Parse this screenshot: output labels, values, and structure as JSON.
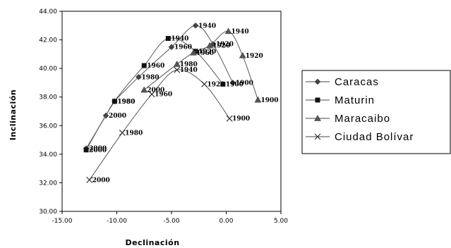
{
  "chart_data": {
    "type": "line",
    "title": "",
    "xlabel": "Declinación",
    "ylabel": "Inclinación",
    "xlim": [
      -15,
      5
    ],
    "ylim": [
      30,
      44
    ],
    "x_ticks": [
      -15,
      -10,
      -5,
      0,
      5
    ],
    "x_tick_labels": [
      "-15.00",
      "-10.00",
      "-5.00",
      "0.00",
      "5.00"
    ],
    "y_ticks": [
      30,
      32,
      34,
      36,
      38,
      40,
      42,
      44
    ],
    "y_tick_labels": [
      "30.00",
      "32.00",
      "34.00",
      "36.00",
      "38.00",
      "40.00",
      "42.00",
      "44.00"
    ],
    "grid": false,
    "legend": "right",
    "series": [
      {
        "name": "Caracas",
        "marker": "diamond",
        "points": [
          {
            "x": -12.8,
            "y": 34.4,
            "label": "2000"
          },
          {
            "x": -11.0,
            "y": 36.7,
            "label": "2000"
          },
          {
            "x": -10.2,
            "y": 37.7,
            "label": "1980"
          },
          {
            "x": -8.0,
            "y": 39.4,
            "label": "1980"
          },
          {
            "x": -5.0,
            "y": 41.5,
            "label": "1960"
          },
          {
            "x": -2.8,
            "y": 43.0,
            "label": "1940"
          },
          {
            "x": -1.2,
            "y": 41.7,
            "label": "1920"
          },
          {
            "x": 0.6,
            "y": 39.0,
            "label": "1900"
          }
        ]
      },
      {
        "name": "Maturin",
        "marker": "square",
        "points": [
          {
            "x": -12.8,
            "y": 34.3,
            "label": "2000"
          },
          {
            "x": -10.2,
            "y": 37.7,
            "label": "1980"
          },
          {
            "x": -7.5,
            "y": 40.2,
            "label": "1960"
          },
          {
            "x": -5.3,
            "y": 42.1,
            "label": "1940"
          },
          {
            "x": -2.8,
            "y": 41.2,
            "label": "1920"
          },
          {
            "x": -0.3,
            "y": 38.9,
            "label": "1900"
          }
        ]
      },
      {
        "name": "Maracaibo",
        "marker": "triangle",
        "points": [
          {
            "x": -7.5,
            "y": 38.5,
            "label": "2000"
          },
          {
            "x": -4.5,
            "y": 40.3,
            "label": "1980"
          },
          {
            "x": -3.0,
            "y": 41.1,
            "label": "1960"
          },
          {
            "x": -1.5,
            "y": 41.6,
            "label": "1920"
          },
          {
            "x": 0.2,
            "y": 42.6,
            "label": "1940"
          },
          {
            "x": 1.5,
            "y": 40.9,
            "label": "1920"
          },
          {
            "x": 2.9,
            "y": 37.8,
            "label": "1900"
          }
        ]
      },
      {
        "name": "Ciudad Bolívar",
        "marker": "x",
        "points": [
          {
            "x": -12.5,
            "y": 32.2,
            "label": "2000"
          },
          {
            "x": -9.5,
            "y": 35.5,
            "label": "1980"
          },
          {
            "x": -6.8,
            "y": 38.2,
            "label": "1960"
          },
          {
            "x": -4.5,
            "y": 39.9,
            "label": "1940"
          },
          {
            "x": -2.0,
            "y": 38.9,
            "label": "1920"
          },
          {
            "x": 0.3,
            "y": 36.5,
            "label": "1900"
          }
        ]
      }
    ]
  }
}
